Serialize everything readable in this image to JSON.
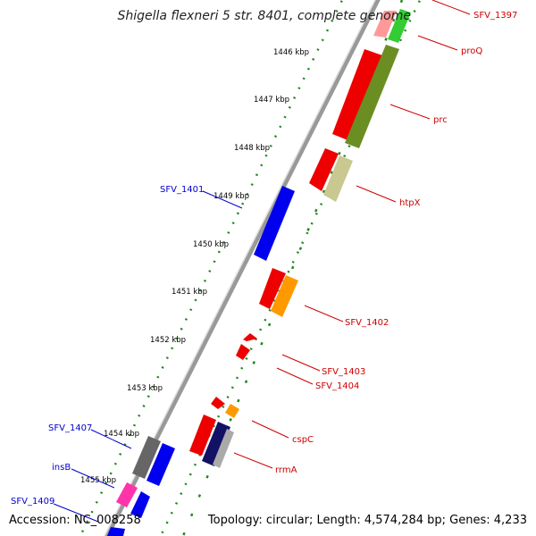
{
  "title": "Shigella flexneri 5 str. 8401, complete genome",
  "accession": "Accession: NC_008258",
  "topology": "Topology: circular; Length: 4,574,284 bp; Genes: 4,233",
  "ticks": [
    "1446 kbp",
    "1447 kbp",
    "1448 kbp",
    "1449 kbp",
    "1450 kbp",
    "1451 kbp",
    "1452 kbp",
    "1453 kbp",
    "1454 kbp",
    "1455 kbp"
  ],
  "genes_forward": [
    "SFV_1397",
    "proQ",
    "prc",
    "htpX",
    "SFV_1402",
    "SFV_1403",
    "SFV_1404",
    "cspC",
    "rrmA"
  ],
  "genes_reverse": [
    "SFV_1401",
    "SFV_1407",
    "insB",
    "SFV_1409"
  ],
  "colors": {
    "backbone": "#888888",
    "dotted_track": "#228822",
    "forward_label": "#cc0000",
    "reverse_label": "#0000cc",
    "cds_red": "#ee0000",
    "cds_blue": "#0000ee",
    "cds_olive": "#6b8e23",
    "cds_green": "#33cc33",
    "cds_khaki": "#c8c890",
    "cds_orange": "#ff9900",
    "cds_gray": "#666666",
    "cds_pink": "#ff33aa",
    "cds_navy": "#111166"
  }
}
